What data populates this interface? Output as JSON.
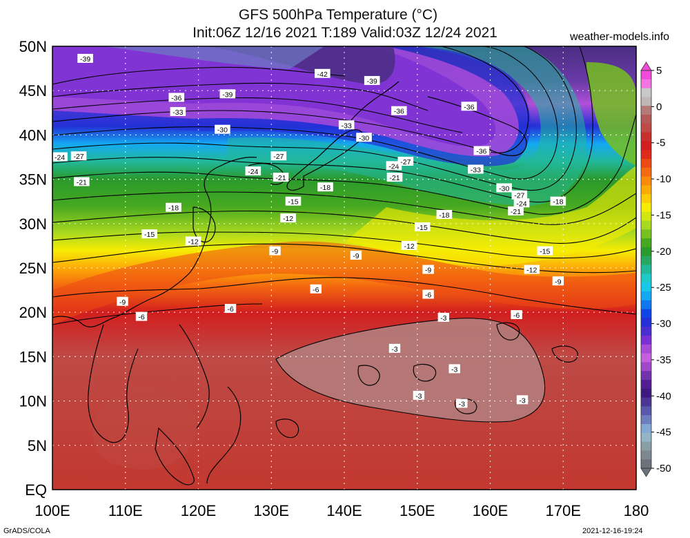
{
  "header": {
    "title_line1": "GFS 500hPa Temperature (°C)",
    "title_line2": "Init:06Z 12/16 2021 T:189 Valid:03Z 12/24 2021",
    "site": "weather-models.info"
  },
  "footer": {
    "left": "GrADS/COLA",
    "right": "2021-12-16-19:24"
  },
  "map": {
    "latitude_labels": [
      "50N",
      "45N",
      "40N",
      "35N",
      "30N",
      "25N",
      "20N",
      "15N",
      "10N",
      "5N",
      "EQ"
    ],
    "longitude_labels": [
      "100E",
      "110E",
      "120E",
      "130E",
      "140E",
      "150E",
      "160E",
      "170E",
      "180"
    ],
    "contour_levels": [
      -42,
      -39,
      -36,
      -33,
      -30,
      -27,
      -24,
      -21,
      -18,
      -15,
      -12,
      -9,
      -6,
      -3
    ],
    "contour_labels": [
      {
        "text": "-39",
        "lon": 104.5,
        "lat": 48.6
      },
      {
        "text": "-42",
        "lon": 137.0,
        "lat": 46.9
      },
      {
        "text": "-39",
        "lon": 143.8,
        "lat": 46.1
      },
      {
        "text": "-36",
        "lon": 117.0,
        "lat": 44.2
      },
      {
        "text": "-39",
        "lon": 124.0,
        "lat": 44.6
      },
      {
        "text": "-33",
        "lon": 117.2,
        "lat": 42.6
      },
      {
        "text": "-36",
        "lon": 147.5,
        "lat": 42.7
      },
      {
        "text": "-36",
        "lon": 157.1,
        "lat": 43.2
      },
      {
        "text": "-30",
        "lon": 123.3,
        "lat": 40.6
      },
      {
        "text": "-33",
        "lon": 140.3,
        "lat": 41.1
      },
      {
        "text": "-30",
        "lon": 142.7,
        "lat": 39.7
      },
      {
        "text": "-36",
        "lon": 158.8,
        "lat": 38.2
      },
      {
        "text": "-27",
        "lon": 131.0,
        "lat": 37.6
      },
      {
        "text": "-24",
        "lon": 101.0,
        "lat": 37.5
      },
      {
        "text": "-27",
        "lon": 103.6,
        "lat": 37.6
      },
      {
        "text": "-24",
        "lon": 127.5,
        "lat": 35.9
      },
      {
        "text": "-21",
        "lon": 131.3,
        "lat": 35.2
      },
      {
        "text": "-24",
        "lon": 146.8,
        "lat": 36.5
      },
      {
        "text": "-27",
        "lon": 148.4,
        "lat": 37.0
      },
      {
        "text": "-21",
        "lon": 146.9,
        "lat": 35.2
      },
      {
        "text": "-33",
        "lon": 158.0,
        "lat": 36.1
      },
      {
        "text": "-21",
        "lon": 104.0,
        "lat": 34.7
      },
      {
        "text": "-18",
        "lon": 137.4,
        "lat": 34.1
      },
      {
        "text": "-30",
        "lon": 161.9,
        "lat": 34.0
      },
      {
        "text": "-27",
        "lon": 164.0,
        "lat": 33.2
      },
      {
        "text": "-24",
        "lon": 164.3,
        "lat": 32.3
      },
      {
        "text": "-21",
        "lon": 163.5,
        "lat": 31.4
      },
      {
        "text": "-18",
        "lon": 169.3,
        "lat": 32.5
      },
      {
        "text": "-18",
        "lon": 153.7,
        "lat": 31.0
      },
      {
        "text": "-15",
        "lon": 133.0,
        "lat": 32.5
      },
      {
        "text": "-18",
        "lon": 116.6,
        "lat": 31.8
      },
      {
        "text": "-12",
        "lon": 132.3,
        "lat": 30.6
      },
      {
        "text": "-15",
        "lon": 150.7,
        "lat": 29.6
      },
      {
        "text": "-15",
        "lon": 113.3,
        "lat": 28.8
      },
      {
        "text": "-12",
        "lon": 119.3,
        "lat": 28.0
      },
      {
        "text": "-12",
        "lon": 148.9,
        "lat": 27.5
      },
      {
        "text": "-9",
        "lon": 130.5,
        "lat": 26.9
      },
      {
        "text": "-9",
        "lon": 141.6,
        "lat": 26.4
      },
      {
        "text": "-15",
        "lon": 167.5,
        "lat": 26.9
      },
      {
        "text": "-9",
        "lon": 151.5,
        "lat": 24.8
      },
      {
        "text": "-12",
        "lon": 165.7,
        "lat": 24.8
      },
      {
        "text": "-9",
        "lon": 169.3,
        "lat": 23.5
      },
      {
        "text": "-6",
        "lon": 136.1,
        "lat": 22.6
      },
      {
        "text": "-6",
        "lon": 151.5,
        "lat": 22.0
      },
      {
        "text": "-9",
        "lon": 109.6,
        "lat": 21.2
      },
      {
        "text": "-6",
        "lon": 124.4,
        "lat": 20.4
      },
      {
        "text": "-6",
        "lon": 112.2,
        "lat": 19.5
      },
      {
        "text": "-6",
        "lon": 163.6,
        "lat": 19.7
      },
      {
        "text": "-3",
        "lon": 153.6,
        "lat": 19.4
      },
      {
        "text": "-3",
        "lon": 146.9,
        "lat": 15.9
      },
      {
        "text": "-3",
        "lon": 155.1,
        "lat": 13.6
      },
      {
        "text": "-3",
        "lon": 150.2,
        "lat": 10.6
      },
      {
        "text": "-3",
        "lon": 164.4,
        "lat": 10.1
      },
      {
        "text": "-3",
        "lon": 156.1,
        "lat": 9.7
      }
    ]
  },
  "colorbar": {
    "tick_labels": [
      "5",
      "0",
      "-5",
      "-10",
      "-15",
      "-20",
      "-25",
      "-30",
      "-35",
      "-40",
      "-45",
      "-50"
    ],
    "colors": [
      "#f04ad8",
      "#f574e3",
      "#c8c8c8",
      "#bdb7b7",
      "#b37a78",
      "#b35a58",
      "#be4a46",
      "#c8302e",
      "#d21e1e",
      "#e02a1c",
      "#ec4a14",
      "#f56a10",
      "#f98a0c",
      "#fcaa08",
      "#fccc06",
      "#f6ec04",
      "#d2e614",
      "#a8d820",
      "#76c020",
      "#46a820",
      "#2a9a2c",
      "#26a860",
      "#22b89a",
      "#1ecac8",
      "#18c8e8",
      "#14a8f2",
      "#1078ee",
      "#1044e4",
      "#2430d6",
      "#4a2ed0",
      "#7a30d2",
      "#a84ad8",
      "#c460de",
      "#a048c8",
      "#7232ae",
      "#521e92",
      "#3e1a80",
      "#4a3494",
      "#5a58aa",
      "#6e7cc0",
      "#84a8d4",
      "#92b6c8",
      "#8a9ea6",
      "#7e8890",
      "#6c727a"
    ],
    "min": -50,
    "max": 5
  }
}
